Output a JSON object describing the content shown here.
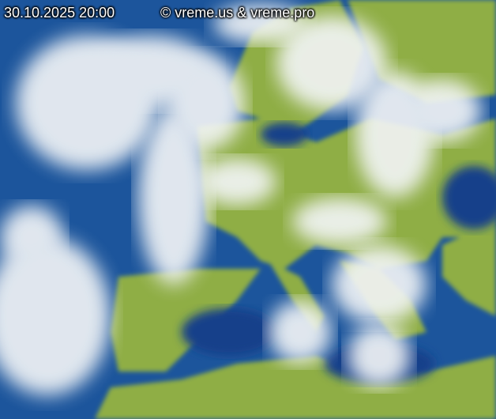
{
  "timestamp": "30.10.2025 20:00",
  "copyright": "© vreme.us & vreme.pro",
  "colors": {
    "sea": "#1a4f96",
    "land": "#8fae45",
    "cloud": "#f2f4f6"
  }
}
